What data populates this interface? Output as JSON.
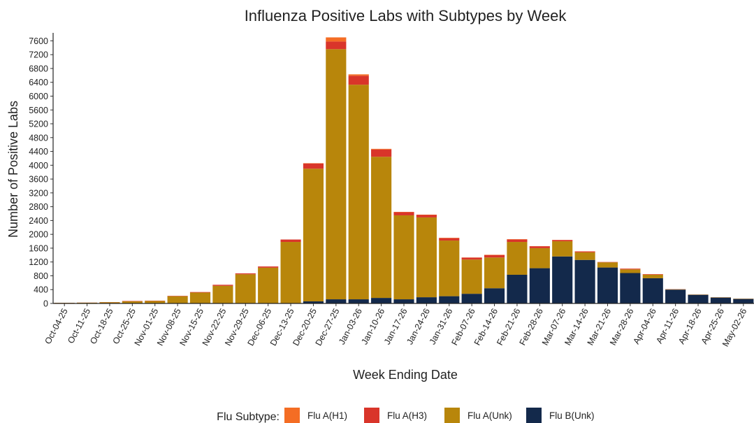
{
  "chart_data": {
    "type": "stacked_bar",
    "title": "Influenza Positive Labs with Subtypes by Week",
    "x_label": "Week Ending Date",
    "y_label": "Number of Positive Labs",
    "legend_title": "Flu Subtype:",
    "categories": [
      "Oct-04-25",
      "Oct-11-25",
      "Oct-18-25",
      "Oct-25-25",
      "Nov-01-25",
      "Nov-08-25",
      "Nov-15-25",
      "Nov-22-25",
      "Nov-29-25",
      "Dec-06-25",
      "Dec-13-25",
      "Dec-20-25",
      "Dec-27-25",
      "Jan-03-26",
      "Jan-10-26",
      "Jan-17-26",
      "Jan-24-26",
      "Jan-31-26",
      "Feb-07-26",
      "Feb-14-26",
      "Feb-21-26",
      "Feb-28-26",
      "Mar-07-26",
      "Mar-14-26",
      "Mar-21-26",
      "Mar-28-26",
      "Apr-04-26",
      "Apr-11-26",
      "Apr-18-26",
      "Apr-25-26",
      "May-02-26"
    ],
    "series": [
      {
        "name": "Flu A(H1)",
        "color": "#f46d24",
        "values": [
          0,
          0,
          0,
          0,
          0,
          0,
          0,
          0,
          0,
          0,
          0,
          10,
          120,
          40,
          20,
          10,
          10,
          10,
          5,
          10,
          10,
          5,
          5,
          5,
          0,
          5,
          5,
          0,
          0,
          0,
          0
        ]
      },
      {
        "name": "Flu A(H3)",
        "color": "#d9352a",
        "values": [
          2,
          3,
          4,
          10,
          8,
          10,
          15,
          30,
          25,
          35,
          70,
          150,
          220,
          260,
          210,
          90,
          70,
          70,
          55,
          70,
          70,
          55,
          35,
          25,
          10,
          20,
          15,
          5,
          2,
          2,
          2
        ]
      },
      {
        "name": "Flu A(Unk)",
        "color": "#b8860b",
        "values": [
          18,
          22,
          36,
          62,
          72,
          210,
          315,
          510,
          845,
          1035,
          1770,
          3840,
          7240,
          6210,
          4085,
          2430,
          2310,
          1610,
          990,
          890,
          950,
          580,
          440,
          220,
          150,
          105,
          100,
          10,
          8,
          8,
          8
        ]
      },
      {
        "name": "Flu B(Unk)",
        "color": "#13294b",
        "values": [
          0,
          0,
          0,
          0,
          0,
          0,
          0,
          0,
          0,
          0,
          10,
          60,
          120,
          120,
          160,
          120,
          180,
          210,
          280,
          440,
          830,
          1020,
          1360,
          1260,
          1040,
          880,
          730,
          400,
          250,
          170,
          130
        ]
      }
    ],
    "ylim": [
      0,
      7750
    ],
    "yticks": [
      0,
      400,
      800,
      1200,
      1600,
      2000,
      2400,
      2800,
      3200,
      3600,
      4000,
      4400,
      4800,
      5200,
      5600,
      6000,
      6400,
      6800,
      7200,
      7600
    ]
  }
}
